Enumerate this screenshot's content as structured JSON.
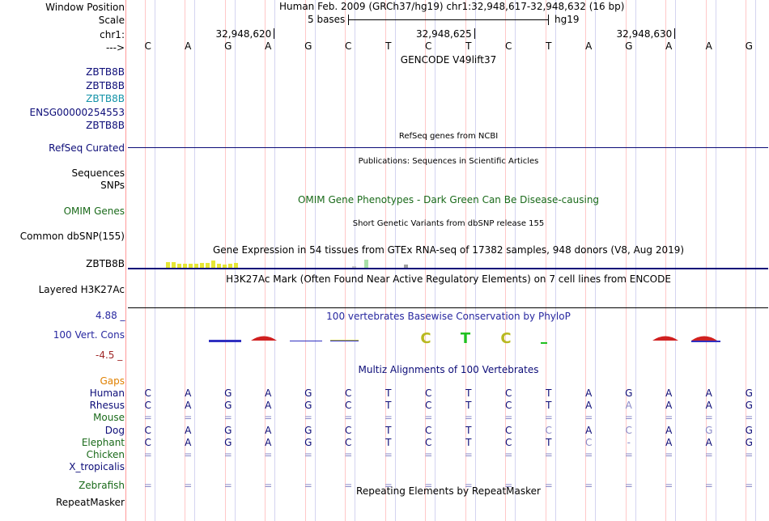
{
  "header": {
    "window_position_label": "Window Position",
    "scale_label": "Scale",
    "chrom_label": "chr1:",
    "arrow_label": "--->",
    "assembly_text": "Human Feb. 2009 (GRCh37/hg19)   chr1:32,948,617-32,948,632 (16 bp)",
    "scale_text": "5 bases",
    "scale_db": "hg19",
    "ruler_ticks": [
      "32,948,620",
      "32,948,625",
      "32,948,630"
    ]
  },
  "reference_bases": [
    "C",
    "A",
    "G",
    "A",
    "G",
    "C",
    "T",
    "C",
    "T",
    "C",
    "T",
    "A",
    "G",
    "A",
    "A",
    "G"
  ],
  "gencode": {
    "title": "GENCODE V49lift37",
    "tracks": [
      {
        "label": "ZBTB8B",
        "color": "#0c0c78"
      },
      {
        "label": "ZBTB8B",
        "color": "#0c0c78"
      },
      {
        "label": "ZBTB8B",
        "color": "#1493a8"
      },
      {
        "label": "ENSG00000254553",
        "color": "#0c0c78"
      },
      {
        "label": "ZBTB8B",
        "color": "#0c0c78"
      }
    ]
  },
  "refseq": {
    "title": "RefSeq genes from NCBI",
    "label": "RefSeq Curated"
  },
  "publications": {
    "title": "Publications: Sequences in Scientific Articles",
    "label_sequences": "Sequences",
    "label_snps": "SNPs"
  },
  "omim": {
    "title": "OMIM Gene Phenotypes - Dark Green Can Be Disease-causing",
    "label": "OMIM Genes"
  },
  "dbsnp": {
    "title": "Short Genetic Variants from dbSNP release 155",
    "label": "Common dbSNP(155)"
  },
  "gtex": {
    "title": "Gene Expression in 54 tissues from GTEx RNA-seq of 17382 samples, 948 donors (V8, Aug 2019)",
    "label": "ZBTB8B"
  },
  "h3k27ac": {
    "title": "H3K27Ac Mark (Often Found Near Active Regulatory Elements) on 7 cell lines from ENCODE",
    "label": "Layered H3K27Ac"
  },
  "conservation": {
    "title": "100 vertebrates Basewise Conservation by PhyloP",
    "label": "100 Vert. Cons",
    "max_label": "4.88 _",
    "min_label": "-4.5 _",
    "logo_letters": [
      "C",
      "T",
      "C"
    ]
  },
  "multiz": {
    "title": "Multiz Alignments of 100 Vertebrates",
    "gaps_label": "Gaps",
    "species": [
      {
        "name": "Human",
        "color": "#0c0c78",
        "bases": [
          "C",
          "A",
          "G",
          "A",
          "G",
          "C",
          "T",
          "C",
          "T",
          "C",
          "T",
          "A",
          "G",
          "A",
          "A",
          "G"
        ]
      },
      {
        "name": "Rhesus",
        "color": "#0c0c78",
        "bases": [
          "C",
          "A",
          "G",
          "A",
          "G",
          "C",
          "T",
          "C",
          "T",
          "C",
          "T",
          "A",
          "A",
          "A",
          "A",
          "G"
        ]
      },
      {
        "name": "Mouse",
        "color": "#1a6a1a",
        "bases": [
          "=",
          "=",
          "=",
          "=",
          "=",
          "=",
          "=",
          "=",
          "=",
          "=",
          "=",
          "=",
          "=",
          "=",
          "=",
          "="
        ]
      },
      {
        "name": "Dog",
        "color": "#0c0c78",
        "bases": [
          "C",
          "A",
          "G",
          "A",
          "G",
          "C",
          "T",
          "C",
          "T",
          "C",
          "C",
          "A",
          "C",
          "A",
          "G",
          "G"
        ]
      },
      {
        "name": "Elephant",
        "color": "#1a6a1a",
        "bases": [
          "C",
          "A",
          "G",
          "A",
          "G",
          "C",
          "T",
          "C",
          "T",
          "C",
          "T",
          "C",
          "-",
          "A",
          "A",
          "G"
        ]
      },
      {
        "name": "Chicken",
        "color": "#1a6a1a",
        "bases": [
          "=",
          "=",
          "=",
          "=",
          "=",
          "=",
          "=",
          "=",
          "=",
          "=",
          "=",
          "=",
          "=",
          "=",
          "=",
          "="
        ]
      },
      {
        "name": "X_tropicalis",
        "color": "#0c0c78",
        "bases": [
          "",
          "",
          "",
          "",
          "",
          "",
          "",
          "",
          "",
          "",
          "",
          "",
          "",
          "",
          "",
          ""
        ]
      },
      {
        "name": "Zebrafish",
        "color": "#1a6a1a",
        "bases": [
          "=",
          "=",
          "=",
          "=",
          "=",
          "=",
          "=",
          "=",
          "=",
          "=",
          "=",
          "=",
          "=",
          "=",
          "=",
          "="
        ]
      }
    ]
  },
  "repeatmasker": {
    "title": "Repeating Elements by RepeatMasker",
    "label": "RepeatMasker"
  },
  "colors": {
    "label_blue": "#0c0c78",
    "gencode_teal": "#1493a8",
    "omim_green": "#1a6a1a",
    "gaps_orange": "#e08000",
    "phylop_blue": "#2828a0",
    "phylop_red": "#a02828",
    "gtex_yellow": "#e6e635",
    "grid_blue": "#d4d4f0",
    "grid_pink": "#ffc8c8"
  }
}
